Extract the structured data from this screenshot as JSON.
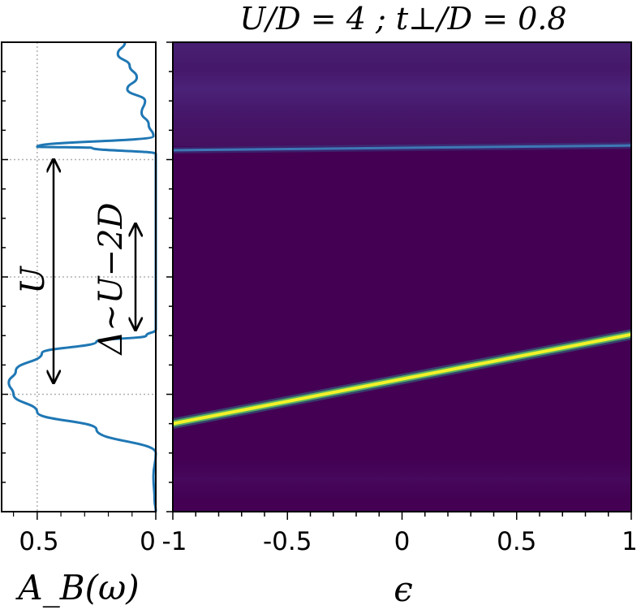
{
  "chart_data": [
    {
      "type": "line",
      "title": "",
      "xlabel": "A_B(ω)",
      "ylabel": "",
      "xlim": [
        0.65,
        0
      ],
      "ylim": [
        -4.0,
        4.0
      ],
      "x_ticks": [
        0.5,
        0
      ],
      "x_tick_labels": [
        "0.5",
        "0"
      ],
      "grid": true,
      "series": [
        {
          "color": "#1f77b4",
          "y": [
            4.0,
            3.8,
            3.6,
            3.4,
            3.2,
            3.0,
            2.8,
            2.6,
            2.4,
            2.22,
            2.2,
            2.1,
            1.8,
            1.0,
            0.0,
            -0.9,
            -1.0,
            -1.1,
            -1.3,
            -1.6,
            -1.8,
            -2.0,
            -2.3,
            -2.6,
            -3.0,
            -3.4,
            -3.8,
            -4.0
          ],
          "x": [
            0.13,
            0.16,
            0.11,
            0.08,
            0.12,
            0.045,
            0.06,
            0.03,
            0.01,
            0.5,
            0.27,
            0.0,
            0.0,
            0.0,
            0.0,
            0.0,
            0.04,
            0.25,
            0.48,
            0.59,
            0.62,
            0.6,
            0.5,
            0.25,
            0.0,
            0.01,
            0.005,
            0.0
          ]
        }
      ],
      "annotations": [
        {
          "text": "U",
          "arrow_y": [
            2.0,
            -1.8
          ]
        },
        {
          "text": "Δ~U−2D",
          "arrow_y": [
            0.9,
            -0.9
          ]
        }
      ]
    },
    {
      "type": "heatmap",
      "title": "U/D = 4 ; t⊥/D = 0.8",
      "xlabel": "ϵ",
      "ylabel": "",
      "xlim": [
        -1,
        1
      ],
      "ylim": [
        -4.0,
        4.0
      ],
      "x_ticks": [
        -1,
        -0.5,
        0,
        0.5,
        1
      ],
      "x_tick_labels": [
        "-1",
        "-0.5",
        "0",
        "0.5",
        "1"
      ],
      "colormap": "viridis",
      "features": [
        {
          "kind": "sharp-line",
          "eps": [
            -1,
            1
          ],
          "omega": [
            2.16,
            2.24
          ],
          "color": "#3e78b5"
        },
        {
          "kind": "sharp-line",
          "eps": [
            -1,
            1
          ],
          "omega": [
            -2.5,
            -0.98
          ],
          "color": "#f2f12a"
        }
      ],
      "background_color": "#440154",
      "upper_band_color": "#4a1f74"
    }
  ]
}
